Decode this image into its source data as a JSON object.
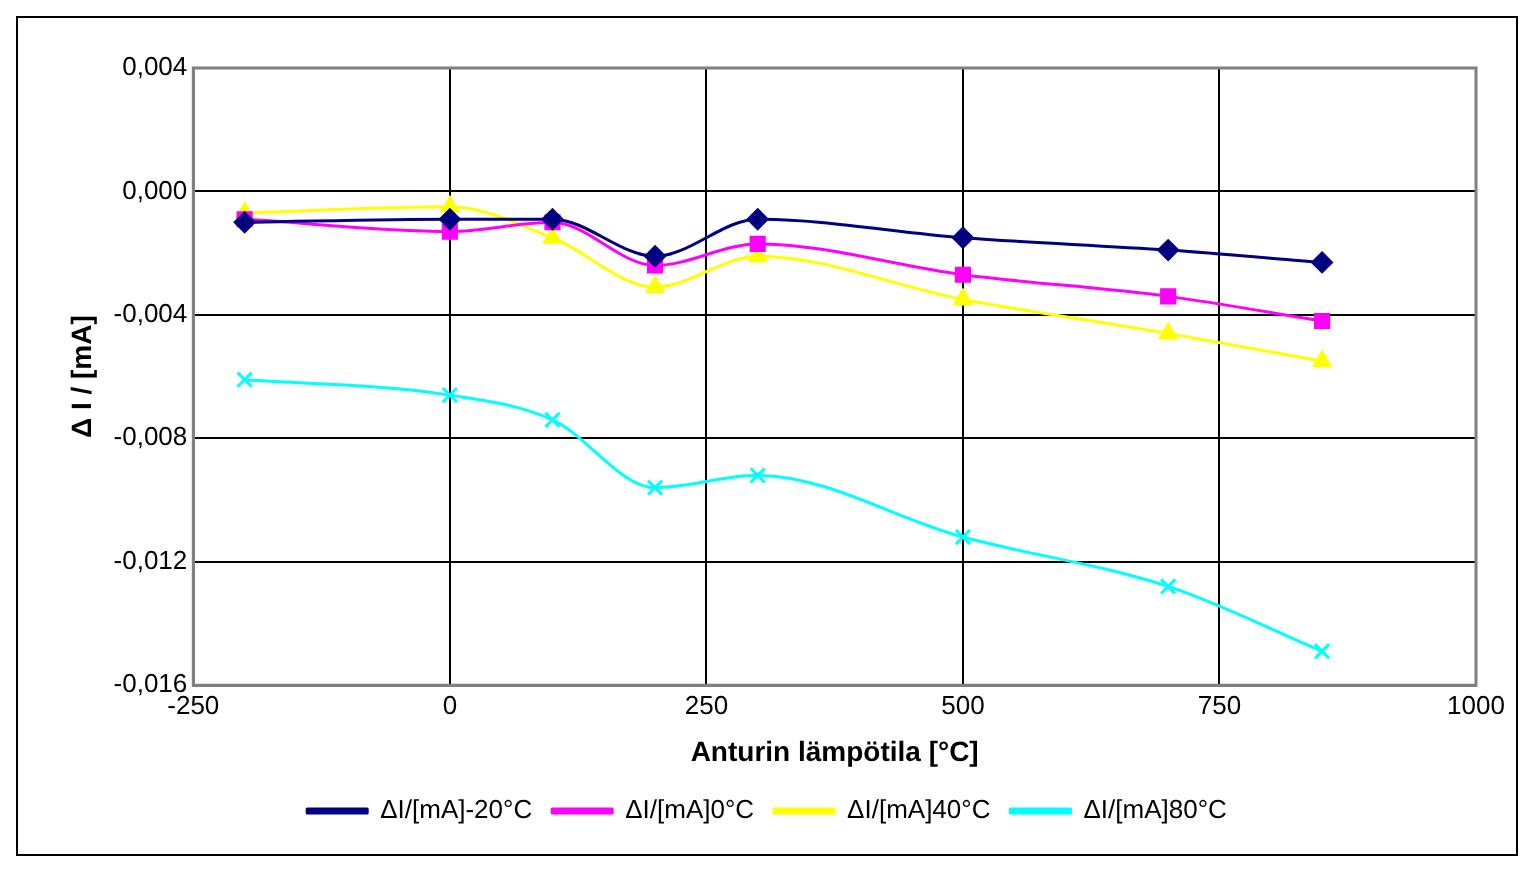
{
  "chart_data": {
    "type": "line",
    "xlabel": "Anturin lämpötila [°C]",
    "ylabel": "Δ I / [mA]",
    "x": [
      -200,
      0,
      100,
      200,
      300,
      500,
      700,
      850
    ],
    "series": [
      {
        "name": "ΔI/[mA]-20°C",
        "color": "#000080",
        "marker": "diamond",
        "values": [
          -0.001,
          -0.0009,
          -0.0009,
          -0.0021,
          -0.0009,
          -0.0015,
          -0.0019,
          -0.0023
        ]
      },
      {
        "name": "ΔI/[mA]0°C",
        "color": "#ff00ff",
        "marker": "square",
        "values": [
          -0.0009,
          -0.0013,
          -0.001,
          -0.0024,
          -0.0017,
          -0.0027,
          -0.0034,
          -0.0042
        ]
      },
      {
        "name": "ΔI/[mA]40°C",
        "color": "#ffff00",
        "marker": "triangle",
        "values": [
          -0.0007,
          -0.0005,
          -0.0015,
          -0.0031,
          -0.0021,
          -0.0035,
          -0.0046,
          -0.0055
        ]
      },
      {
        "name": "ΔI/[mA]80°C",
        "color": "#00ffff",
        "marker": "cross",
        "values": [
          -0.0061,
          -0.0066,
          -0.0074,
          -0.0096,
          -0.0092,
          -0.0112,
          -0.0128,
          -0.0149
        ]
      }
    ],
    "xlim": [
      -250,
      1000
    ],
    "xticks": [
      -250,
      0,
      250,
      500,
      750,
      1000
    ],
    "ylim": [
      -0.016,
      0.004
    ],
    "yticks": [
      {
        "value": -0.016,
        "label": "-0,016"
      },
      {
        "value": -0.012,
        "label": "-0,012"
      },
      {
        "value": -0.008,
        "label": "-0,008"
      },
      {
        "value": -0.004,
        "label": "-0,004"
      },
      {
        "value": 0,
        "label": "0,000"
      },
      {
        "value": 0.004,
        "label": "0,004"
      }
    ],
    "grid": true,
    "legend": "bottom",
    "line_style": "solid"
  }
}
